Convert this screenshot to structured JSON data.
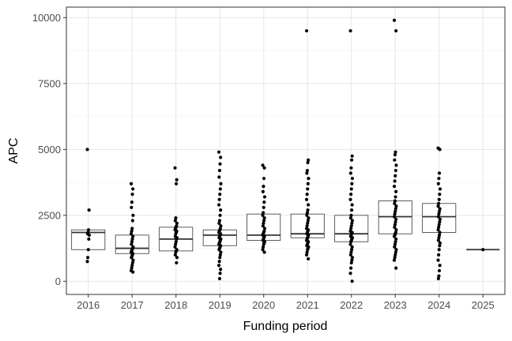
{
  "chart_data": {
    "type": "box",
    "xlabel": "Funding period",
    "ylabel": "APC",
    "categories": [
      "2016",
      "2017",
      "2018",
      "2019",
      "2020",
      "2021",
      "2022",
      "2023",
      "2024",
      "2025"
    ],
    "ylim": [
      -500,
      10400
    ],
    "yticks": [
      0,
      2500,
      5000,
      7500,
      10000
    ],
    "grid": true,
    "legend": "none",
    "boxes": [
      {
        "period": "2016",
        "q1": 1200,
        "median": 1850,
        "q3": 1950
      },
      {
        "period": "2017",
        "q1": 1050,
        "median": 1250,
        "q3": 1750
      },
      {
        "period": "2018",
        "q1": 1150,
        "median": 1600,
        "q3": 2050
      },
      {
        "period": "2019",
        "q1": 1350,
        "median": 1750,
        "q3": 1950
      },
      {
        "period": "2020",
        "q1": 1550,
        "median": 1750,
        "q3": 2550
      },
      {
        "period": "2021",
        "q1": 1650,
        "median": 1800,
        "q3": 2550
      },
      {
        "period": "2022",
        "q1": 1500,
        "median": 1800,
        "q3": 2500
      },
      {
        "period": "2023",
        "q1": 1800,
        "median": 2450,
        "q3": 3050
      },
      {
        "period": "2024",
        "q1": 1850,
        "median": 2450,
        "q3": 2950
      },
      {
        "period": "2025",
        "q1": 1200,
        "median": 1200,
        "q3": 1200
      }
    ],
    "points": [
      {
        "period": "2016",
        "values": [
          5000,
          2700,
          1950,
          1850,
          1800,
          1750,
          1600,
          1200,
          900,
          750
        ]
      },
      {
        "period": "2017",
        "values": [
          3700,
          3500,
          3300,
          3000,
          2800,
          2500,
          2300,
          2000,
          1900,
          1800,
          1700,
          1600,
          1500,
          1400,
          1300,
          1250,
          1200,
          1150,
          1100,
          1050,
          1000,
          950,
          900,
          800,
          700,
          600,
          500,
          400,
          350
        ]
      },
      {
        "period": "2018",
        "values": [
          4300,
          3850,
          3700,
          2400,
          2300,
          2200,
          2100,
          2050,
          2000,
          1950,
          1900,
          1850,
          1800,
          1700,
          1650,
          1600,
          1500,
          1400,
          1300,
          1200,
          1150,
          1100,
          1000,
          900,
          700
        ]
      },
      {
        "period": "2019",
        "values": [
          4900,
          4700,
          4450,
          4200,
          3950,
          3700,
          3500,
          3300,
          3100,
          2900,
          2700,
          2500,
          2300,
          2200,
          2100,
          2000,
          1950,
          1900,
          1850,
          1800,
          1750,
          1700,
          1650,
          1600,
          1550,
          1500,
          1450,
          1400,
          1350,
          1300,
          1250,
          1200,
          1100,
          1000,
          900,
          750,
          600,
          450,
          300,
          100
        ]
      },
      {
        "period": "2020",
        "values": [
          4400,
          4300,
          3900,
          3600,
          3400,
          3200,
          3000,
          2800,
          2600,
          2500,
          2400,
          2300,
          2200,
          2100,
          2000,
          1900,
          1850,
          1800,
          1750,
          1700,
          1650,
          1600,
          1550,
          1500,
          1450,
          1400,
          1300,
          1200,
          1100
        ]
      },
      {
        "period": "2021",
        "values": [
          9500,
          4600,
          4500,
          4200,
          4100,
          3900,
          3700,
          3500,
          3300,
          3100,
          2900,
          2700,
          2600,
          2500,
          2400,
          2300,
          2200,
          2100,
          2000,
          1950,
          1900,
          1850,
          1800,
          1750,
          1700,
          1650,
          1600,
          1550,
          1500,
          1450,
          1400,
          1350,
          1300,
          1250,
          1200,
          1100,
          1000,
          850
        ]
      },
      {
        "period": "2022",
        "values": [
          9500,
          4750,
          4600,
          4300,
          4100,
          3900,
          3700,
          3500,
          3300,
          3100,
          2900,
          2700,
          2500,
          2400,
          2300,
          2200,
          2100,
          2000,
          1900,
          1850,
          1800,
          1750,
          1700,
          1650,
          1600,
          1550,
          1500,
          1400,
          1300,
          1200,
          1100,
          1000,
          900,
          800,
          700,
          500,
          300,
          0
        ]
      },
      {
        "period": "2023",
        "values": [
          9900,
          9500,
          4900,
          4800,
          4600,
          4400,
          4200,
          4000,
          3800,
          3600,
          3400,
          3200,
          3050,
          2950,
          2850,
          2750,
          2650,
          2550,
          2450,
          2350,
          2250,
          2150,
          2050,
          1950,
          1850,
          1800,
          1750,
          1700,
          1600,
          1500,
          1400,
          1300,
          1200,
          1100,
          1000,
          900,
          800,
          500
        ]
      },
      {
        "period": "2024",
        "values": [
          5050,
          5000,
          4100,
          3900,
          3700,
          3500,
          3300,
          3100,
          2950,
          2850,
          2750,
          2650,
          2550,
          2450,
          2350,
          2250,
          2150,
          2050,
          1950,
          1850,
          1750,
          1650,
          1550,
          1450,
          1350,
          1200,
          1000,
          800,
          600,
          400,
          200,
          100
        ]
      },
      {
        "period": "2025",
        "values": [
          1200
        ]
      }
    ]
  }
}
